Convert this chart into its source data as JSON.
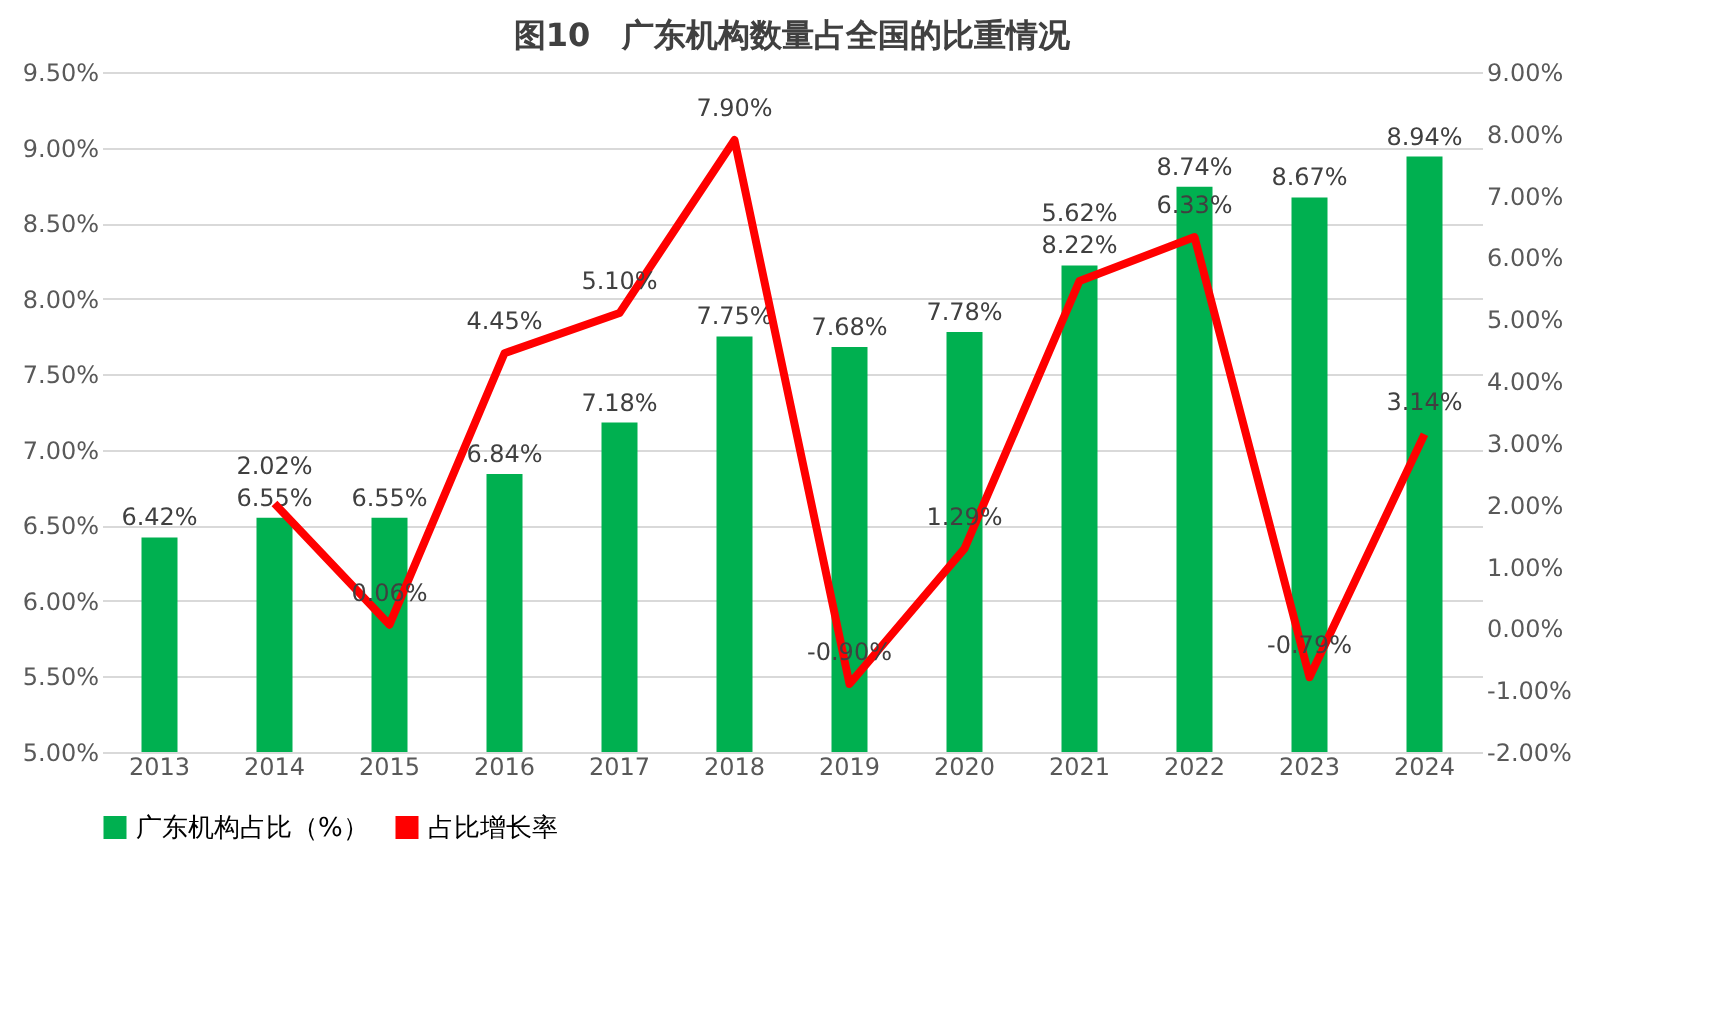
{
  "chart_data": {
    "type": "bar",
    "title": "图10　广东机构数量占全国的比重情况",
    "categories": [
      "2013",
      "2014",
      "2015",
      "2016",
      "2017",
      "2018",
      "2019",
      "2020",
      "2021",
      "2022",
      "2023",
      "2024"
    ],
    "series": [
      {
        "name": "广东机构占比（%）",
        "color": "#00b050",
        "values": [
          6.42,
          6.55,
          6.55,
          6.84,
          7.18,
          7.75,
          7.68,
          7.78,
          8.22,
          8.74,
          8.67,
          8.94
        ],
        "value_labels": [
          "6.42%",
          "6.55%",
          "6.55%",
          "6.84%",
          "7.18%",
          "7.75%",
          "7.68%",
          "7.78%",
          "8.22%",
          "8.74%",
          "8.67%",
          "8.94%"
        ]
      },
      {
        "name": "占比增长率",
        "type": "line",
        "axis": "y2",
        "color": "#ff0000",
        "values": [
          null,
          2.02,
          0.06,
          4.45,
          5.1,
          7.9,
          -0.9,
          1.29,
          5.62,
          6.33,
          -0.79,
          3.14
        ],
        "value_labels": [
          null,
          "2.02%",
          "0.06%",
          "4.45%",
          "5.10%",
          "7.90%",
          "-0.90%",
          "1.29%",
          "5.62%",
          "6.33%",
          "-0.79%",
          "3.14%"
        ]
      }
    ],
    "ylim": [
      5.0,
      9.5
    ],
    "yticks": [
      {
        "value": 5.0,
        "label": "5.00%"
      },
      {
        "value": 5.5,
        "label": "5.50%"
      },
      {
        "value": 6.0,
        "label": "6.00%"
      },
      {
        "value": 6.5,
        "label": "6.50%"
      },
      {
        "value": 7.0,
        "label": "7.00%"
      },
      {
        "value": 7.5,
        "label": "7.50%"
      },
      {
        "value": 8.0,
        "label": "8.00%"
      },
      {
        "value": 8.5,
        "label": "8.50%"
      },
      {
        "value": 9.0,
        "label": "9.00%"
      },
      {
        "value": 9.5,
        "label": "9.50%"
      }
    ],
    "y2lim": [
      -2,
      9
    ],
    "y2ticks": [
      {
        "value": -2,
        "label": "-2.00%"
      },
      {
        "value": -1,
        "label": "-1.00%"
      },
      {
        "value": 0,
        "label": "0.00%"
      },
      {
        "value": 1,
        "label": "1.00%"
      },
      {
        "value": 2,
        "label": "2.00%"
      },
      {
        "value": 3,
        "label": "3.00%"
      },
      {
        "value": 4,
        "label": "4.00%"
      },
      {
        "value": 5,
        "label": "5.00%"
      },
      {
        "value": 6,
        "label": "6.00%"
      },
      {
        "value": 7,
        "label": "7.00%"
      },
      {
        "value": 8,
        "label": "8.00%"
      },
      {
        "value": 9,
        "label": "9.00%"
      }
    ],
    "grid": "y",
    "legend": "bottom",
    "marker": "none",
    "line_style": "solid"
  }
}
